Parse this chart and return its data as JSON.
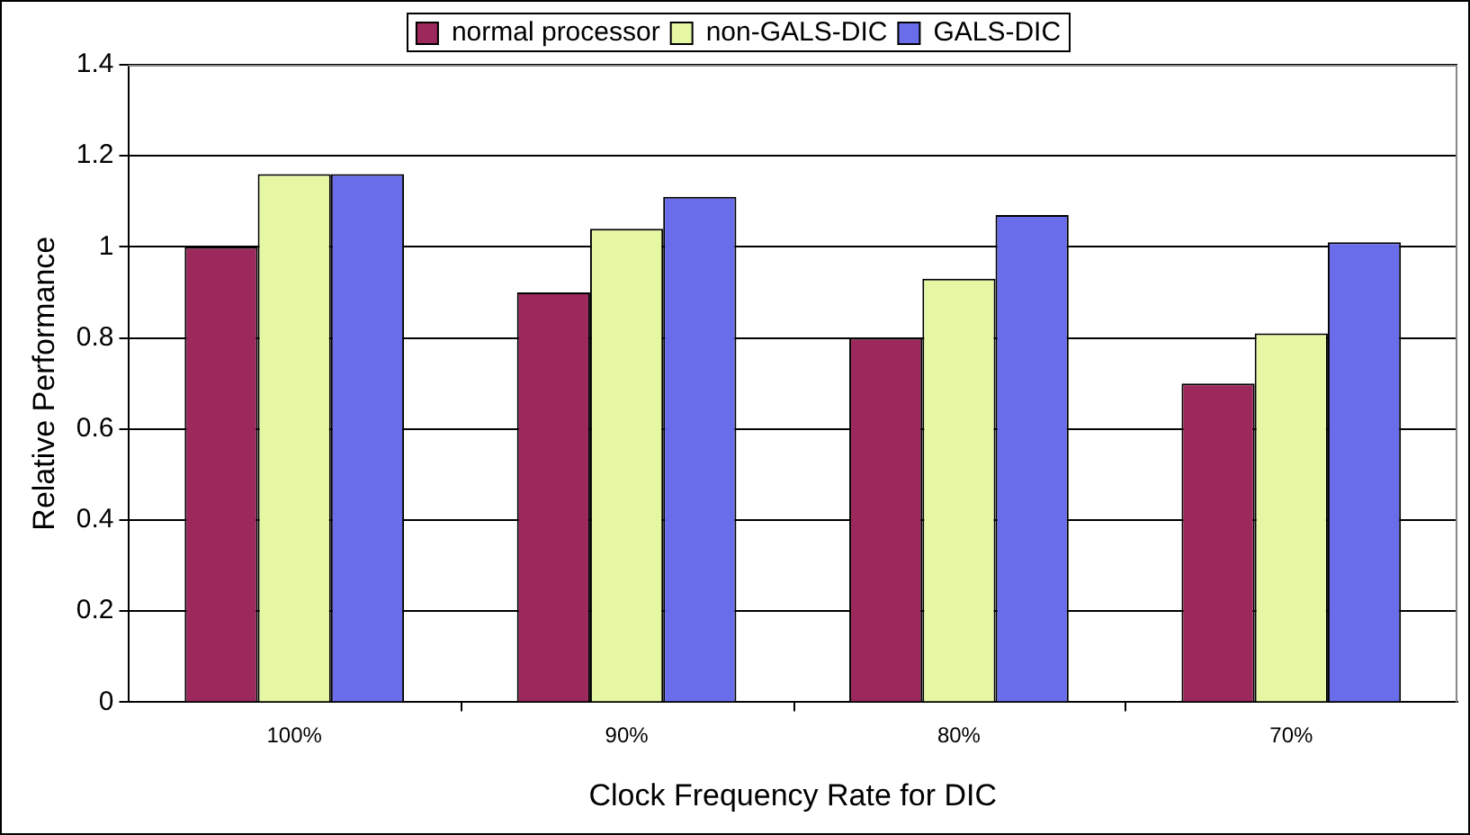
{
  "chart_data": {
    "type": "bar",
    "xlabel": "Clock Frequency Rate for DIC",
    "ylabel": "Relative Performance",
    "categories": [
      "100%",
      "90%",
      "80%",
      "70%"
    ],
    "series": [
      {
        "name": "normal processor",
        "color": "#9c285c",
        "values": [
          1,
          0.9,
          0.8,
          0.7
        ]
      },
      {
        "name": "non-GALS-DIC",
        "color": "#e6f7a4",
        "values": [
          1.16,
          1.04,
          0.93,
          0.81
        ]
      },
      {
        "name": "GALS-DIC",
        "color": "#6a6dea",
        "values": [
          1.16,
          1.11,
          1.07,
          1.01
        ]
      }
    ],
    "ylim": [
      0,
      1.4
    ],
    "yticks": [
      0,
      0.2,
      0.4,
      0.6,
      0.8,
      1,
      1.2,
      1.4
    ],
    "grid": "y",
    "legend": "top"
  }
}
